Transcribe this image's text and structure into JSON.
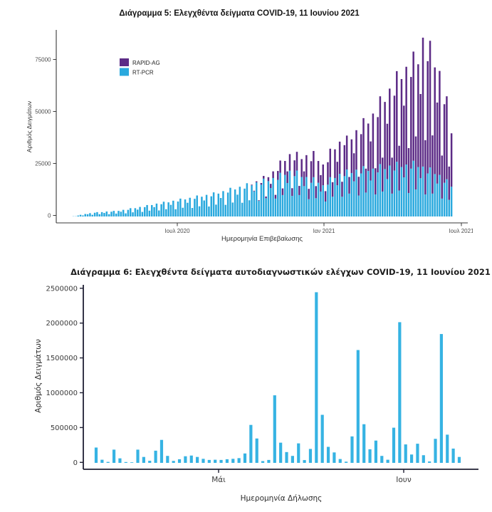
{
  "page": {
    "background": "#ffffff"
  },
  "chart_data": [
    {
      "type": "bar",
      "stacked": true,
      "title": "Διάγραμμα 5: Ελεγχθέντα δείγματα COVID-19, 11 Ιουνίου 2021",
      "xlabel": "Ημερομηνία Επιβεβαίωσης",
      "ylabel": "Αριθμός Δειγμάτων",
      "legend": [
        "RAPID-AG",
        "RT-PCR"
      ],
      "legend_position": "inside-top-left",
      "colors": {
        "rapid": "#5c2b86",
        "pcr": "#2aa9de"
      },
      "grid": false,
      "ylim": [
        0,
        87000
      ],
      "y_ticks": [
        {
          "label": "0",
          "value": 0
        },
        {
          "label": "25000",
          "value": 25000
        },
        {
          "label": "50000",
          "value": 50000
        },
        {
          "label": "75000",
          "value": 75000
        }
      ],
      "x_ticks": [
        "Ιουλ 2020",
        "Ιαν 2021",
        "Ιουλ 2021"
      ],
      "series": [
        {
          "name": "RT-PCR",
          "values": [
            100,
            100,
            450,
            800,
            500,
            1200,
            1100,
            1600,
            800,
            1800,
            2100,
            1100,
            2100,
            1700,
            2400,
            1100,
            2300,
            2700,
            1400,
            2700,
            2300,
            3200,
            1500,
            3200,
            4000,
            2000,
            4000,
            3300,
            4600,
            2200,
            4500,
            5500,
            2800,
            5500,
            4500,
            6200,
            2900,
            5900,
            7100,
            3500,
            6800,
            5600,
            7600,
            3500,
            7200,
            8600,
            4200,
            8200,
            6600,
            9000,
            4100,
            8500,
            10100,
            4900,
            9500,
            7700,
            10400,
            4800,
            9700,
            11600,
            5700,
            11000,
            8900,
            12200,
            5600,
            11500,
            13800,
            6700,
            13000,
            10500,
            14300,
            6600,
            13400,
            16000,
            7800,
            15000,
            12100,
            16400,
            7500,
            15300,
            18200,
            8800,
            17000,
            13700,
            18500,
            8600,
            17600,
            21000,
            10300,
            20000,
            16100,
            22000,
            9900,
            19400,
            22100,
            10300,
            19000,
            14600,
            19000,
            8300,
            16200,
            18900,
            8800,
            16200,
            12000,
            15000,
            7200,
            15300,
            18900,
            9500,
            18500,
            15000,
            20500,
            9500,
            19400,
            22600,
            11000,
            20900,
            16900,
            22500,
            10100,
            20700,
            24200,
            11500,
            21900,
            17300,
            23000,
            10600,
            21200,
            25200,
            12000,
            22800,
            18000,
            24500,
            11000,
            22100,
            26300,
            12500,
            23800,
            18800,
            25000,
            11300,
            23000,
            26800,
            13000,
            23800,
            18400,
            24000,
            10600,
            20700,
            23600,
            11000,
            20400,
            15800,
            20000,
            8600,
            16200,
            17900,
            8000,
            14300
          ]
        },
        {
          "name": "RAPID-AG",
          "values": [
            0,
            0,
            0,
            0,
            0,
            0,
            0,
            0,
            0,
            0,
            0,
            0,
            0,
            0,
            0,
            0,
            0,
            0,
            0,
            0,
            0,
            0,
            0,
            0,
            0,
            0,
            0,
            0,
            0,
            0,
            0,
            0,
            0,
            0,
            0,
            0,
            0,
            0,
            0,
            0,
            0,
            0,
            0,
            0,
            0,
            0,
            0,
            0,
            0,
            0,
            0,
            0,
            0,
            0,
            0,
            0,
            0,
            0,
            0,
            0,
            0,
            0,
            0,
            0,
            0,
            0,
            0,
            0,
            0,
            0,
            0,
            0,
            0,
            0,
            0,
            300,
            300,
            500,
            300,
            800,
            1300,
            800,
            1900,
            2000,
            3200,
            1800,
            4300,
            5900,
            3200,
            6700,
            5600,
            8000,
            3700,
            7600,
            9000,
            4400,
            8600,
            7100,
            10500,
            5000,
            10400,
            12600,
            5800,
            10500,
            7900,
            10000,
            5000,
            10800,
            13700,
            7000,
            13800,
            11300,
            15500,
            7200,
            14900,
            16300,
            8000,
            16200,
            13500,
            19000,
            9000,
            18900,
            23100,
            11500,
            22800,
            18800,
            26500,
            12600,
            26600,
            32600,
            16300,
            32300,
            26600,
            37000,
            17300,
            36000,
            43600,
            21500,
            42300,
            34500,
            47000,
            21600,
            44100,
            52500,
            25500,
            49400,
            40500,
            62000,
            26100,
            54000,
            60900,
            28000,
            51300,
            39000,
            50000,
            20700,
            37800,
            39900,
            16000,
            25700
          ]
        }
      ]
    },
    {
      "type": "bar",
      "title": "Διάγραμμα 6: Ελεγχθέντα δείγματα αυτοδιαγνωστικών ελέγχων COVID-19, 11 Ιουνίου 2021",
      "xlabel": "Ημερομηνία Δήλωσης",
      "ylabel": "Αριθμός Δειγμάτων",
      "color": "#36b3e3",
      "grid": false,
      "ylim": [
        0,
        2500000
      ],
      "y_ticks": [
        {
          "label": "0",
          "value": 0
        },
        {
          "label": "500000",
          "value": 500000
        },
        {
          "label": "1000000",
          "value": 1000000
        },
        {
          "label": "1500000",
          "value": 1500000
        },
        {
          "label": "2000000",
          "value": 2000000
        },
        {
          "label": "2500000",
          "value": 2500000
        }
      ],
      "x_ticks": [
        "Μάι",
        "Ιουν"
      ],
      "values": [
        220000,
        45000,
        14000,
        190000,
        65000,
        12000,
        8000,
        190000,
        85000,
        30000,
        175000,
        330000,
        100000,
        28000,
        52000,
        95000,
        105000,
        85000,
        58000,
        42000,
        45000,
        42000,
        52000,
        58000,
        68000,
        135000,
        545000,
        350000,
        25000,
        42000,
        970000,
        290000,
        155000,
        100000,
        280000,
        40000,
        200000,
        2450000,
        690000,
        230000,
        150000,
        55000,
        17000,
        380000,
        1620000,
        555000,
        195000,
        320000,
        100000,
        45000,
        505000,
        2020000,
        265000,
        120000,
        275000,
        110000,
        20000,
        345000,
        1850000,
        405000,
        205000,
        85000
      ]
    }
  ]
}
